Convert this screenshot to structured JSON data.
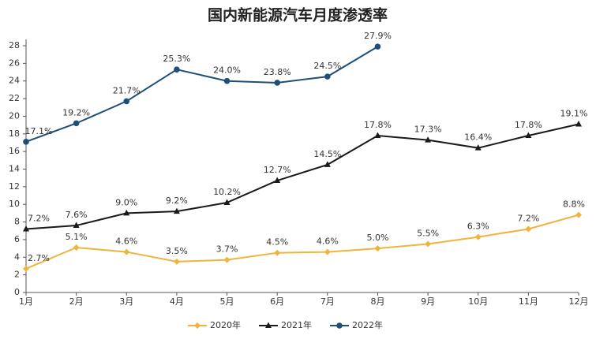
{
  "chart_data": {
    "type": "line",
    "title": "国内新能源汽车月度渗透率",
    "categories": [
      "1月",
      "2月",
      "3月",
      "4月",
      "5月",
      "6月",
      "7月",
      "8月",
      "9月",
      "10月",
      "11月",
      "12月"
    ],
    "ylim": [
      0,
      28
    ],
    "yticks": [
      0,
      2,
      4,
      6,
      8,
      10,
      12,
      14,
      16,
      18,
      20,
      22,
      24,
      26,
      28
    ],
    "grid": false,
    "legend": "bottom",
    "series": [
      {
        "name": "2020年",
        "color": "#f0b43c",
        "marker": "diamond",
        "values": [
          2.7,
          5.1,
          4.6,
          3.5,
          3.7,
          4.5,
          4.6,
          5.0,
          5.5,
          6.3,
          7.2,
          8.8
        ],
        "value_labels": [
          "2.7%",
          "5.1%",
          "4.6%",
          "3.5%",
          "3.7%",
          "4.5%",
          "4.6%",
          "5.0%",
          "5.5%",
          "6.3%",
          "7.2%",
          "8.8%"
        ]
      },
      {
        "name": "2021年",
        "color": "#1a1a1a",
        "marker": "triangle",
        "values": [
          7.2,
          7.6,
          9.0,
          9.2,
          10.2,
          12.7,
          14.5,
          17.8,
          17.3,
          16.4,
          17.8,
          19.1
        ],
        "value_labels": [
          "7.2%",
          "7.6%",
          "9.0%",
          "9.2%",
          "10.2%",
          "12.7%",
          "14.5%",
          "17.8%",
          "17.3%",
          "16.4%",
          "17.8%",
          "19.1%"
        ]
      },
      {
        "name": "2022年",
        "color": "#1f4e79",
        "marker": "circle",
        "values": [
          17.1,
          19.2,
          21.7,
          25.3,
          24.0,
          23.8,
          24.5,
          27.9,
          null,
          null,
          null,
          null
        ],
        "value_labels": [
          "17.1%",
          "19.2%",
          "21.7%",
          "25.3%",
          "24.0%",
          "23.8%",
          "24.5%",
          "27.9%",
          null,
          null,
          null,
          null
        ]
      }
    ]
  }
}
